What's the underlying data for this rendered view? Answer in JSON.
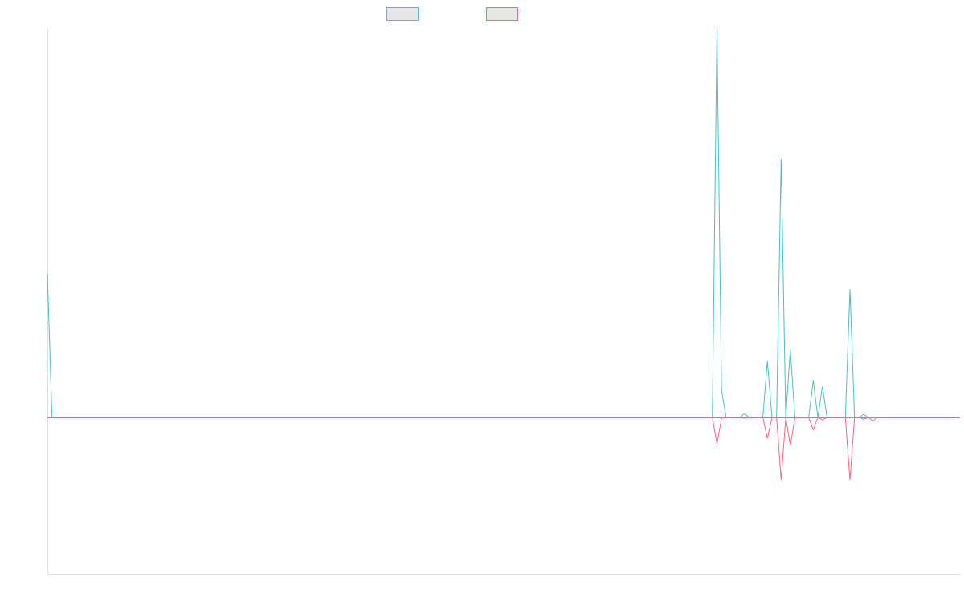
{
  "chart_data": {
    "type": "line",
    "title": "",
    "xlabel": "",
    "ylabel": "",
    "grid": false,
    "legend_placement": "top-center",
    "x_count": 200,
    "ylim": [
      -1.0,
      1.0
    ],
    "series": [
      {
        "name": "",
        "color": "#4bc0c0",
        "points": [
          [
            0,
            0.37
          ],
          [
            1,
            0.0
          ],
          [
            5,
            0.0
          ],
          [
            145,
            0.0
          ],
          [
            146,
            1.0
          ],
          [
            147,
            0.07
          ],
          [
            148,
            0.0
          ],
          [
            151,
            0.0
          ],
          [
            152,
            0.01
          ],
          [
            153,
            0.0
          ],
          [
            156,
            0.0
          ],
          [
            157,
            0.145
          ],
          [
            158,
            0.0
          ],
          [
            159,
            0.0
          ],
          [
            160,
            0.665
          ],
          [
            161,
            0.0
          ],
          [
            162,
            0.175
          ],
          [
            163,
            0.0
          ],
          [
            164,
            0.0
          ],
          [
            166,
            0.0
          ],
          [
            167,
            0.095
          ],
          [
            168,
            0.0
          ],
          [
            169,
            0.08
          ],
          [
            170,
            0.0
          ],
          [
            174,
            0.0
          ],
          [
            175,
            0.33
          ],
          [
            176,
            0.0
          ],
          [
            177,
            0.0
          ],
          [
            178,
            0.008
          ],
          [
            179,
            0.0
          ],
          [
            199,
            0.0
          ]
        ]
      },
      {
        "name": "",
        "color": "#ff6384",
        "points": [
          [
            0,
            0.0
          ],
          [
            145,
            0.0
          ],
          [
            146,
            -0.17
          ],
          [
            147,
            -0.005
          ],
          [
            148,
            0.0
          ],
          [
            151,
            0.0
          ],
          [
            152,
            -0.005
          ],
          [
            153,
            0.0
          ],
          [
            156,
            0.0
          ],
          [
            157,
            -0.135
          ],
          [
            158,
            0.0
          ],
          [
            159,
            0.0
          ],
          [
            160,
            -0.4
          ],
          [
            161,
            0.0
          ],
          [
            162,
            -0.18
          ],
          [
            163,
            -0.005
          ],
          [
            164,
            0.0
          ],
          [
            166,
            0.0
          ],
          [
            167,
            -0.08
          ],
          [
            168,
            0.0
          ],
          [
            169,
            -0.015
          ],
          [
            170,
            0.0
          ],
          [
            174,
            0.0
          ],
          [
            175,
            -0.4
          ],
          [
            176,
            0.0
          ],
          [
            177,
            0.0
          ],
          [
            178,
            -0.012
          ],
          [
            179,
            0.0
          ],
          [
            180,
            -0.022
          ],
          [
            181,
            0.0
          ],
          [
            199,
            0.0
          ]
        ]
      }
    ]
  }
}
